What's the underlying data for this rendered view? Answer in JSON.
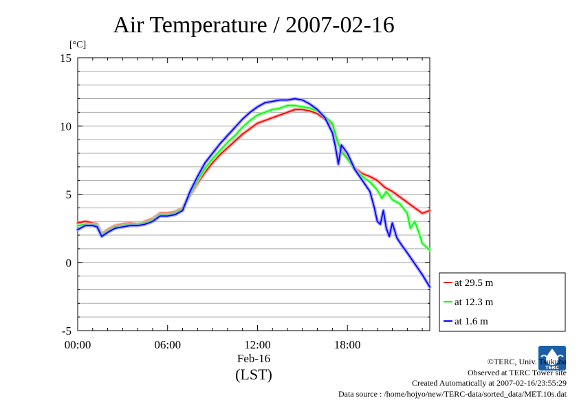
{
  "chart_data": {
    "type": "line",
    "title": "Air Temperature / 2007-02-16",
    "ylabel": "[°C]",
    "xlabel_date": "Feb-16",
    "xlabel_tz": "(LST)",
    "xlim_hours": [
      0,
      23.5
    ],
    "ylim": [
      -5,
      15
    ],
    "yticks": [
      -5,
      0,
      5,
      10,
      15
    ],
    "xticks": [
      {
        "hour": 0,
        "label": "00:00"
      },
      {
        "hour": 6,
        "label": "06:00"
      },
      {
        "hour": 12,
        "label": "12:00"
      },
      {
        "hour": 18,
        "label": "18:00"
      }
    ],
    "grid": true,
    "legend_position": "outside-right",
    "series": [
      {
        "name": "at 29.5 m",
        "color": "#ff0000",
        "points": [
          [
            0,
            2.9
          ],
          [
            0.5,
            3.0
          ],
          [
            1.0,
            2.9
          ],
          [
            1.3,
            2.8
          ],
          [
            1.6,
            2.1
          ],
          [
            2.0,
            2.4
          ],
          [
            2.5,
            2.7
          ],
          [
            3.0,
            2.8
          ],
          [
            3.5,
            2.9
          ],
          [
            4.0,
            2.8
          ],
          [
            4.5,
            3.0
          ],
          [
            5.0,
            3.2
          ],
          [
            5.5,
            3.6
          ],
          [
            6.0,
            3.6
          ],
          [
            6.5,
            3.7
          ],
          [
            7.0,
            4.0
          ],
          [
            7.5,
            4.9
          ],
          [
            8.0,
            5.8
          ],
          [
            8.5,
            6.6
          ],
          [
            9.0,
            7.3
          ],
          [
            9.5,
            7.9
          ],
          [
            10.0,
            8.4
          ],
          [
            10.5,
            8.9
          ],
          [
            11.0,
            9.4
          ],
          [
            11.5,
            9.8
          ],
          [
            12.0,
            10.2
          ],
          [
            12.5,
            10.4
          ],
          [
            13.0,
            10.6
          ],
          [
            13.5,
            10.8
          ],
          [
            14.0,
            11.0
          ],
          [
            14.5,
            11.2
          ],
          [
            15.0,
            11.2
          ],
          [
            15.5,
            11.1
          ],
          [
            16.0,
            10.9
          ],
          [
            16.5,
            10.5
          ],
          [
            17.0,
            10.1
          ],
          [
            17.3,
            9.1
          ],
          [
            17.6,
            8.2
          ],
          [
            18.0,
            7.7
          ],
          [
            18.5,
            6.9
          ],
          [
            19.0,
            6.5
          ],
          [
            19.5,
            6.3
          ],
          [
            20.0,
            6.0
          ],
          [
            20.5,
            5.5
          ],
          [
            21.0,
            5.2
          ],
          [
            21.5,
            4.8
          ],
          [
            22.0,
            4.4
          ],
          [
            22.5,
            4.0
          ],
          [
            23.0,
            3.6
          ],
          [
            23.5,
            3.8
          ]
        ]
      },
      {
        "name": "at 12.3 m",
        "color": "#00ff00",
        "points": [
          [
            0,
            2.7
          ],
          [
            0.5,
            2.8
          ],
          [
            1.0,
            2.8
          ],
          [
            1.3,
            2.7
          ],
          [
            1.6,
            2.0
          ],
          [
            2.0,
            2.3
          ],
          [
            2.5,
            2.6
          ],
          [
            3.0,
            2.7
          ],
          [
            3.5,
            2.8
          ],
          [
            4.0,
            2.8
          ],
          [
            4.5,
            2.9
          ],
          [
            5.0,
            3.1
          ],
          [
            5.5,
            3.5
          ],
          [
            6.0,
            3.5
          ],
          [
            6.5,
            3.6
          ],
          [
            7.0,
            3.9
          ],
          [
            7.5,
            5.0
          ],
          [
            8.0,
            6.0
          ],
          [
            8.5,
            6.9
          ],
          [
            9.0,
            7.6
          ],
          [
            9.5,
            8.2
          ],
          [
            10.0,
            8.8
          ],
          [
            10.5,
            9.3
          ],
          [
            11.0,
            9.9
          ],
          [
            11.5,
            10.4
          ],
          [
            12.0,
            10.8
          ],
          [
            12.5,
            11.0
          ],
          [
            13.0,
            11.2
          ],
          [
            13.5,
            11.3
          ],
          [
            14.0,
            11.5
          ],
          [
            14.5,
            11.5
          ],
          [
            15.0,
            11.4
          ],
          [
            15.5,
            11.3
          ],
          [
            16.0,
            11.1
          ],
          [
            16.5,
            10.7
          ],
          [
            17.0,
            10.2
          ],
          [
            17.3,
            9.0
          ],
          [
            17.6,
            8.1
          ],
          [
            18.0,
            7.6
          ],
          [
            18.5,
            6.8
          ],
          [
            19.0,
            6.3
          ],
          [
            19.5,
            5.9
          ],
          [
            20.0,
            5.3
          ],
          [
            20.3,
            4.7
          ],
          [
            20.6,
            5.2
          ],
          [
            21.0,
            4.6
          ],
          [
            21.5,
            4.3
          ],
          [
            22.0,
            3.6
          ],
          [
            22.2,
            2.5
          ],
          [
            22.5,
            3.0
          ],
          [
            22.8,
            2.1
          ],
          [
            23.0,
            1.4
          ],
          [
            23.5,
            0.9
          ]
        ]
      },
      {
        "name": "at 1.6 m",
        "color": "#0000ff",
        "points": [
          [
            0,
            2.4
          ],
          [
            0.5,
            2.7
          ],
          [
            1.0,
            2.7
          ],
          [
            1.3,
            2.6
          ],
          [
            1.6,
            1.9
          ],
          [
            2.0,
            2.2
          ],
          [
            2.5,
            2.5
          ],
          [
            3.0,
            2.6
          ],
          [
            3.5,
            2.7
          ],
          [
            4.0,
            2.7
          ],
          [
            4.5,
            2.8
          ],
          [
            5.0,
            3.0
          ],
          [
            5.5,
            3.4
          ],
          [
            6.0,
            3.4
          ],
          [
            6.5,
            3.5
          ],
          [
            7.0,
            3.8
          ],
          [
            7.5,
            5.2
          ],
          [
            8.0,
            6.3
          ],
          [
            8.5,
            7.3
          ],
          [
            9.0,
            8.0
          ],
          [
            9.5,
            8.7
          ],
          [
            10.0,
            9.3
          ],
          [
            10.5,
            9.9
          ],
          [
            11.0,
            10.5
          ],
          [
            11.5,
            11.0
          ],
          [
            12.0,
            11.4
          ],
          [
            12.5,
            11.7
          ],
          [
            13.0,
            11.8
          ],
          [
            13.5,
            11.9
          ],
          [
            14.0,
            11.9
          ],
          [
            14.5,
            12.0
          ],
          [
            15.0,
            11.9
          ],
          [
            15.5,
            11.6
          ],
          [
            16.0,
            11.2
          ],
          [
            16.5,
            10.6
          ],
          [
            17.0,
            9.5
          ],
          [
            17.2,
            8.5
          ],
          [
            17.4,
            7.2
          ],
          [
            17.6,
            8.6
          ],
          [
            18.0,
            8.0
          ],
          [
            18.5,
            6.8
          ],
          [
            19.0,
            6.0
          ],
          [
            19.5,
            5.2
          ],
          [
            19.8,
            4.0
          ],
          [
            20.0,
            3.0
          ],
          [
            20.2,
            2.8
          ],
          [
            20.4,
            3.8
          ],
          [
            20.6,
            2.5
          ],
          [
            20.8,
            1.9
          ],
          [
            21.0,
            2.9
          ],
          [
            21.3,
            1.8
          ],
          [
            21.6,
            1.3
          ],
          [
            22.0,
            0.7
          ],
          [
            22.5,
            -0.1
          ],
          [
            23.0,
            -0.9
          ],
          [
            23.5,
            -1.8
          ]
        ]
      }
    ]
  },
  "credits": {
    "copyright": "©TERC, Univ. Tsukuba",
    "observed": "Observed at TERC Tower site",
    "created": "Created Automatically at 2007-02-16/23:55:29",
    "source": "Data source : /home/hojyo/new/TERC-data/sorted_data/MET.10s.dat"
  },
  "logo": {
    "text": "TERC",
    "color": "#1a5fa8"
  }
}
